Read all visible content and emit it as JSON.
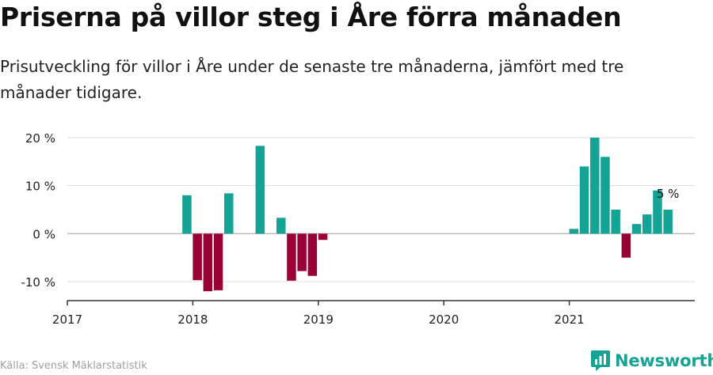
{
  "title": "Priserna på villor steg i Åre förra månaden",
  "subtitle": "Prisutveckling för villor i Åre under de senaste tre månaderna, jämfört med tre månader tidigare.",
  "source": "Källa: Svensk Mäklarstatistik",
  "brand": "Newsworthy",
  "icon_name": "newsworthy-logo-icon",
  "colors": {
    "positive": "#13a496",
    "negative": "#990036",
    "grid": "#dddddd",
    "axis": "#333333",
    "brand": "#16a396"
  },
  "chart_data": {
    "type": "bar",
    "title": "Priserna på villor steg i Åre förra månaden",
    "xlabel": "",
    "ylabel": "",
    "x_ticks": [
      "2017",
      "2018",
      "2019",
      "2020",
      "2021"
    ],
    "y_ticks": [
      "-10 %",
      "0 %",
      "10 %",
      "20 %"
    ],
    "ylim": [
      -14,
      22
    ],
    "xlim": [
      "2017-01",
      "2021-12"
    ],
    "annotation": {
      "label": "5 %",
      "date": "2021-10",
      "value": 5
    },
    "values": [
      {
        "date": "2017-12",
        "value": 8
      },
      {
        "date": "2018-01",
        "value": -9.7
      },
      {
        "date": "2018-02",
        "value": -12
      },
      {
        "date": "2018-03",
        "value": -11.8
      },
      {
        "date": "2018-04",
        "value": 8.4
      },
      {
        "date": "2018-07",
        "value": 18.3
      },
      {
        "date": "2018-09",
        "value": 3.3
      },
      {
        "date": "2018-10",
        "value": -9.8
      },
      {
        "date": "2018-11",
        "value": -7.8
      },
      {
        "date": "2018-12",
        "value": -8.8
      },
      {
        "date": "2019-01",
        "value": -1.3
      },
      {
        "date": "2021-01",
        "value": 1
      },
      {
        "date": "2021-02",
        "value": 14
      },
      {
        "date": "2021-03",
        "value": 20
      },
      {
        "date": "2021-04",
        "value": 16
      },
      {
        "date": "2021-05",
        "value": 5
      },
      {
        "date": "2021-06",
        "value": -5
      },
      {
        "date": "2021-07",
        "value": 2
      },
      {
        "date": "2021-08",
        "value": 4
      },
      {
        "date": "2021-09",
        "value": 9
      },
      {
        "date": "2021-10",
        "value": 5
      }
    ]
  }
}
